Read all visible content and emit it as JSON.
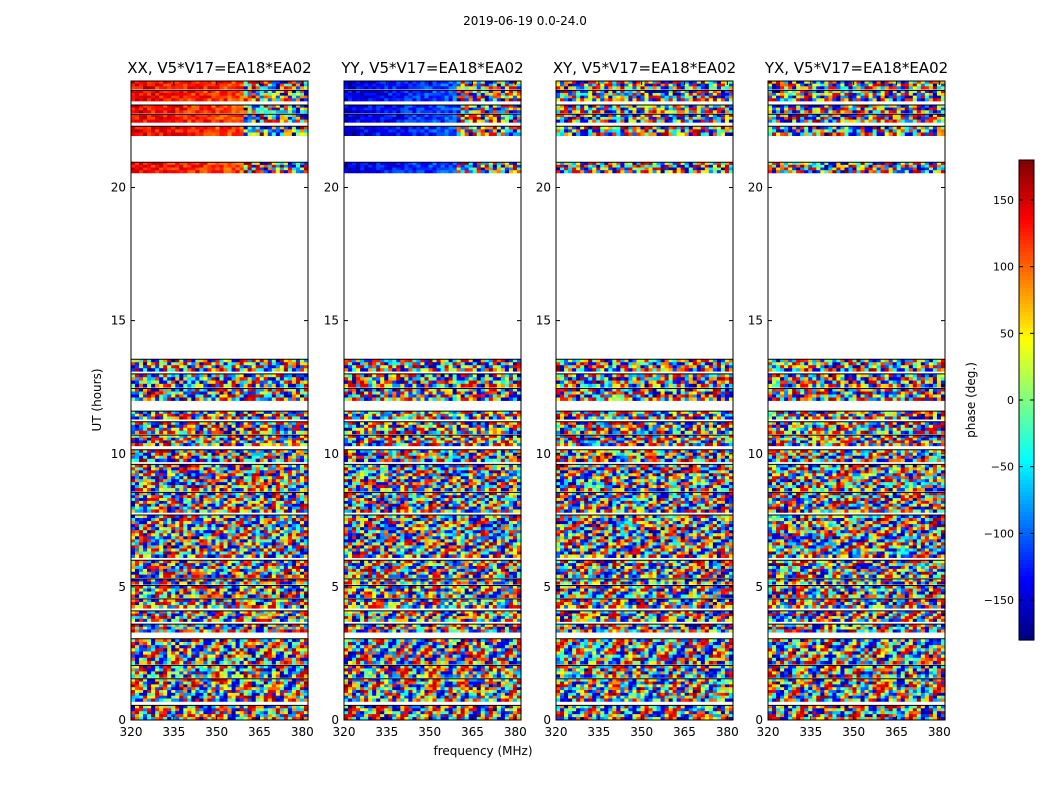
{
  "suptitle": "2019-06-19 0.0-24.0",
  "chart_data": {
    "type": "heatmap",
    "xlabel": "frequency (MHz)",
    "ylabel": "UT (hours)",
    "xlim": [
      320,
      382
    ],
    "ylim": [
      0,
      24
    ],
    "xticks": [
      320,
      335,
      350,
      365,
      380
    ],
    "yticks": [
      0,
      5,
      10,
      15,
      20
    ],
    "colorbar": {
      "label": "phase (deg.)",
      "range": [
        -180,
        180
      ],
      "ticks": [
        -150,
        -100,
        -50,
        0,
        50,
        100,
        150
      ],
      "colormap": "jet"
    },
    "panels": [
      {
        "title": "XX, V5*V17=EA18*EA02",
        "phase_pattern": "coherent",
        "base_phase": 140,
        "phase_slope": -1.1
      },
      {
        "title": "YY, V5*V17=EA18*EA02",
        "phase_pattern": "coherent",
        "base_phase": -150,
        "phase_slope": 1.7
      },
      {
        "title": "XY, V5*V17=EA18*EA02",
        "phase_pattern": "noise"
      },
      {
        "title": "YX, V5*V17=EA18*EA02",
        "phase_pattern": "noise"
      }
    ],
    "data_time_ranges_hours": [
      [
        0.0,
        0.55
      ],
      [
        0.7,
        1.55
      ],
      [
        1.6,
        2.05
      ],
      [
        2.1,
        3.05
      ],
      [
        3.3,
        3.6
      ],
      [
        3.7,
        4.1
      ],
      [
        4.2,
        4.55
      ],
      [
        4.6,
        5.05
      ],
      [
        5.1,
        5.3
      ],
      [
        5.35,
        6.0
      ],
      [
        6.1,
        7.7
      ],
      [
        7.8,
        8.55
      ],
      [
        8.6,
        9.6
      ],
      [
        9.7,
        10.15
      ],
      [
        10.3,
        10.7
      ],
      [
        10.75,
        11.2
      ],
      [
        11.3,
        11.6
      ],
      [
        12.0,
        12.45
      ],
      [
        12.5,
        13.0
      ],
      [
        13.1,
        13.55
      ],
      [
        20.55,
        20.95
      ],
      [
        21.95,
        22.3
      ],
      [
        22.45,
        22.75
      ],
      [
        22.8,
        23.1
      ],
      [
        23.25,
        23.65
      ],
      [
        23.7,
        24.0
      ]
    ],
    "data_frequency_range_mhz": [
      320,
      382
    ]
  }
}
